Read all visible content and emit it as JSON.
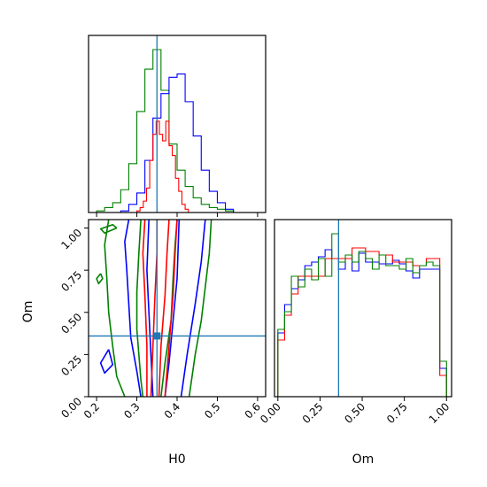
{
  "chart_data": {
    "type": "corner",
    "truth": {
      "H0": 0.35,
      "Om": 0.36
    },
    "truth_color": "#1f77b4",
    "panels": [
      {
        "id": "hist-H0",
        "type": "histogram",
        "xlim": [
          0.18,
          0.62
        ],
        "xticks": [
          0.2,
          0.3,
          0.4,
          0.5,
          0.6
        ],
        "show_tick_labels": false,
        "series": [
          {
            "color": "#008000",
            "edges_start": 0.2,
            "bin_width": 0.02,
            "values": [
              1,
              3,
              6,
              14,
              30,
              62,
              88,
              100,
              75,
              42,
              26,
              16,
              9,
              5,
              3,
              2,
              1,
              0,
              0,
              0
            ]
          },
          {
            "color": "#0000ff",
            "edges_start": 0.26,
            "bin_width": 0.02,
            "values": [
              1,
              5,
              12,
              32,
              58,
              73,
              83,
              85,
              68,
              47,
              26,
              13,
              6,
              2
            ]
          },
          {
            "color": "#ff0000",
            "edges_start": 0.3,
            "bin_width": 0.008,
            "values": [
              1,
              3,
              7,
              15,
              32,
              48,
              56,
              48,
              44,
              56,
              41,
              35,
              21,
              13,
              5,
              2
            ]
          }
        ]
      },
      {
        "id": "contour-H0-Om",
        "type": "contour",
        "xlabel": "H0",
        "ylabel": "Om",
        "xlim": [
          0.18,
          0.62
        ],
        "ylim": [
          0.0,
          1.05
        ],
        "xticks": [
          0.2,
          0.3,
          0.4,
          0.5,
          0.6
        ],
        "xtick_labels": [
          "0.2",
          "0.3",
          "0.4",
          "0.5",
          "0.6"
        ],
        "yticks": [
          0.0,
          0.25,
          0.5,
          0.75,
          1.0
        ],
        "ytick_labels": [
          "0.00",
          "0.25",
          "0.50",
          "0.75",
          "1.00"
        ],
        "series": [
          {
            "color": "#008000",
            "contours": [
              [
                [
                  0.27,
                  0.0
                ],
                [
                  0.25,
                  0.12
                ],
                [
                  0.24,
                  0.3
                ],
                [
                  0.23,
                  0.5
                ],
                [
                  0.225,
                  0.72
                ],
                [
                  0.22,
                  0.9
                ],
                [
                  0.23,
                  1.05
                ]
              ],
              [
                [
                  0.31,
                  1.05
                ],
                [
                  0.305,
                  0.85
                ],
                [
                  0.3,
                  0.62
                ],
                [
                  0.3,
                  0.4
                ],
                [
                  0.305,
                  0.25
                ],
                [
                  0.31,
                  0.1
                ],
                [
                  0.315,
                  0.0
                ]
              ],
              [
                [
                  0.36,
                  0.0
                ],
                [
                  0.37,
                  0.2
                ],
                [
                  0.385,
                  0.45
                ],
                [
                  0.39,
                  0.7
                ],
                [
                  0.395,
                  0.9
                ],
                [
                  0.4,
                  1.05
                ]
              ],
              [
                [
                  0.43,
                  0.0
                ],
                [
                  0.445,
                  0.25
                ],
                [
                  0.46,
                  0.45
                ],
                [
                  0.47,
                  0.65
                ],
                [
                  0.48,
                  0.85
                ],
                [
                  0.485,
                  1.05
                ]
              ],
              [
                [
                  0.25,
                  1.0
                ],
                [
                  0.22,
                  0.97
                ],
                [
                  0.21,
                  0.995
                ],
                [
                  0.24,
                  1.02
                ],
                [
                  0.25,
                  1.0
                ]
              ],
              [
                [
                  0.21,
                  0.73
                ],
                [
                  0.2,
                  0.7
                ],
                [
                  0.205,
                  0.67
                ],
                [
                  0.215,
                  0.7
                ],
                [
                  0.21,
                  0.73
                ]
              ]
            ]
          },
          {
            "color": "#0000ff",
            "contours": [
              [
                [
                  0.31,
                  0.0
                ],
                [
                  0.3,
                  0.15
                ],
                [
                  0.285,
                  0.35
                ],
                [
                  0.28,
                  0.55
                ],
                [
                  0.275,
                  0.75
                ],
                [
                  0.27,
                  0.92
                ],
                [
                  0.28,
                  1.05
                ]
              ],
              [
                [
                  0.34,
                  0.0
                ],
                [
                  0.335,
                  0.25
                ],
                [
                  0.33,
                  0.5
                ],
                [
                  0.325,
                  0.75
                ],
                [
                  0.33,
                  1.05
                ]
              ],
              [
                [
                  0.37,
                  0.0
                ],
                [
                  0.38,
                  0.2
                ],
                [
                  0.39,
                  0.45
                ],
                [
                  0.4,
                  0.7
                ],
                [
                  0.405,
                  1.05
                ]
              ],
              [
                [
                  0.41,
                  0.0
                ],
                [
                  0.425,
                  0.25
                ],
                [
                  0.445,
                  0.55
                ],
                [
                  0.46,
                  0.8
                ],
                [
                  0.47,
                  1.05
                ]
              ],
              [
                [
                  0.23,
                  0.28
                ],
                [
                  0.21,
                  0.2
                ],
                [
                  0.22,
                  0.14
                ],
                [
                  0.24,
                  0.19
                ],
                [
                  0.23,
                  0.28
                ]
              ]
            ]
          },
          {
            "color": "#ff0000",
            "contours": [
              [
                [
                  0.325,
                  0.0
                ],
                [
                  0.325,
                  0.3
                ],
                [
                  0.32,
                  0.6
                ],
                [
                  0.315,
                  0.85
                ],
                [
                  0.32,
                  1.05
                ]
              ],
              [
                [
                  0.335,
                  0.0
                ],
                [
                  0.34,
                  0.3
                ],
                [
                  0.345,
                  0.6
                ],
                [
                  0.35,
                  0.85
                ],
                [
                  0.35,
                  1.05
                ]
              ],
              [
                [
                  0.355,
                  0.0
                ],
                [
                  0.36,
                  0.3
                ],
                [
                  0.37,
                  0.6
                ],
                [
                  0.375,
                  0.85
                ],
                [
                  0.38,
                  1.05
                ]
              ],
              [
                [
                  0.37,
                  0.0
                ],
                [
                  0.38,
                  0.3
                ],
                [
                  0.39,
                  0.6
                ],
                [
                  0.395,
                  0.85
                ],
                [
                  0.4,
                  1.05
                ]
              ]
            ]
          }
        ]
      },
      {
        "id": "hist-Om",
        "type": "histogram",
        "xlabel": "Om",
        "xlim": [
          -0.02,
          1.03
        ],
        "xticks": [
          0.0,
          0.25,
          0.5,
          0.75,
          1.0
        ],
        "xtick_labels": [
          "0.00",
          "0.25",
          "0.50",
          "0.75",
          "1.00"
        ],
        "series": [
          {
            "color": "#0000ff",
            "edges_start": 0.0,
            "bin_width": 0.04,
            "values": [
              36,
              52,
              61,
              66,
              74,
              76,
              79,
              83,
              78,
              72,
              78,
              71,
              81,
              76,
              76,
              75,
              75,
              77,
              75,
              71,
              67,
              72,
              72,
              72,
              16
            ]
          },
          {
            "color": "#ff0000",
            "edges_start": 0.0,
            "bin_width": 0.04,
            "values": [
              32,
              46,
              58,
              68,
              68,
              68,
              68,
              78,
              78,
              78,
              78,
              84,
              84,
              82,
              82,
              80,
              80,
              76,
              76,
              76,
              74,
              74,
              78,
              78,
              12
            ]
          },
          {
            "color": "#008000",
            "edges_start": 0.0,
            "bin_width": 0.04,
            "values": [
              38,
              48,
              68,
              62,
              72,
              66,
              78,
              68,
              92,
              76,
              80,
              76,
              82,
              78,
              72,
              80,
              74,
              74,
              72,
              78,
              70,
              74,
              76,
              74,
              20
            ]
          }
        ]
      }
    ]
  }
}
